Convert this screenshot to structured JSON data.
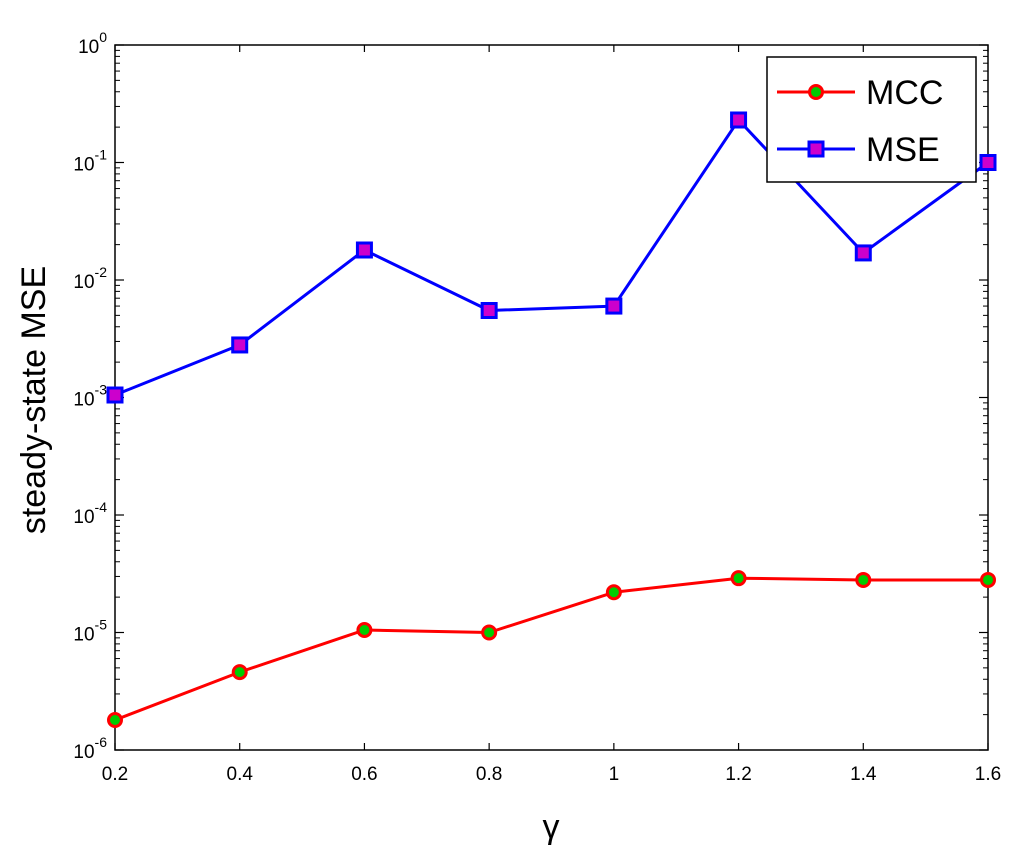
{
  "chart_data": {
    "type": "line",
    "title": "",
    "xlabel": "γ",
    "ylabel": "steady-state MSE",
    "x": [
      0.2,
      0.4,
      0.6,
      0.8,
      1.0,
      1.2,
      1.4,
      1.6
    ],
    "x_ticks": [
      "0.2",
      "0.4",
      "0.6",
      "0.8",
      "1",
      "1.2",
      "1.4",
      "1.6"
    ],
    "y_scale": "log",
    "ylim": [
      1e-06,
      1
    ],
    "y_ticks": [
      {
        "base": "10",
        "exp": "0"
      },
      {
        "base": "10",
        "exp": "-1"
      },
      {
        "base": "10",
        "exp": "-2"
      },
      {
        "base": "10",
        "exp": "-3"
      },
      {
        "base": "10",
        "exp": "-4"
      },
      {
        "base": "10",
        "exp": "-5"
      },
      {
        "base": "10",
        "exp": "-6"
      }
    ],
    "grid": false,
    "legend_position": "top-right",
    "series": [
      {
        "name": "MCC",
        "values": [
          1.8e-06,
          4.6e-06,
          1.05e-05,
          1e-05,
          2.2e-05,
          2.9e-05,
          2.8e-05,
          2.8e-05
        ],
        "line_color": "#ff0000",
        "marker": "circle",
        "marker_fill": "#00cc00",
        "marker_edge": "#ff0000"
      },
      {
        "name": "MSE",
        "values": [
          0.00105,
          0.0028,
          0.018,
          0.0055,
          0.006,
          0.23,
          0.017,
          0.1
        ],
        "line_color": "#0000ff",
        "marker": "square",
        "marker_fill": "#cc00cc",
        "marker_edge": "#0000ff"
      }
    ]
  }
}
